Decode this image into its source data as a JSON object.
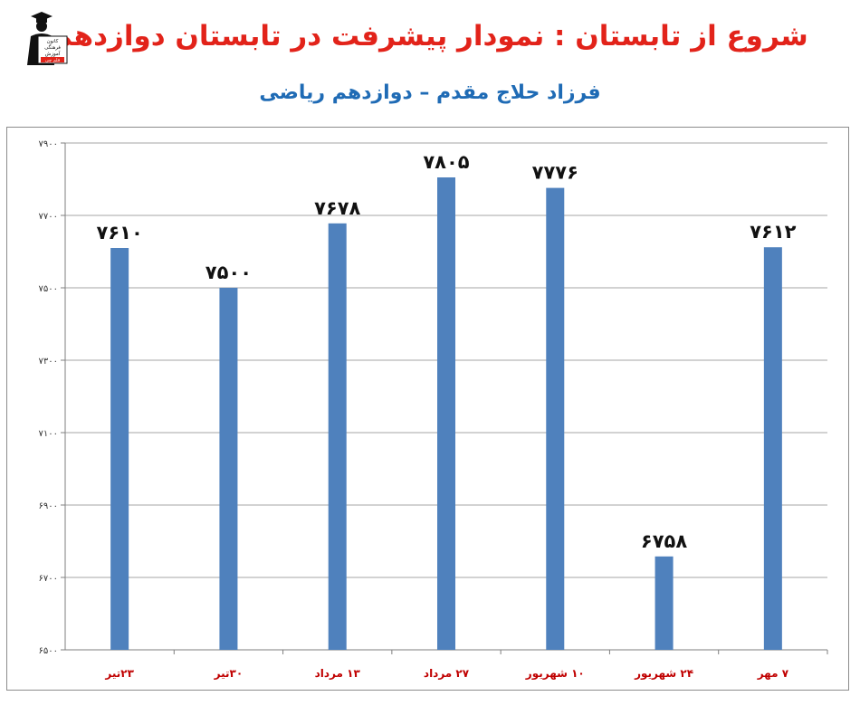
{
  "header": {
    "title": "شروع از تابستان : نمودار پیشرفت در تابستان دوازدهم",
    "subtitle": "فرزاد حلاج مقدم – دوازدهم ریاضی"
  },
  "logo": {
    "icon": "graduate-logo-icon",
    "text_lines": [
      "کانون",
      "فرهنگی",
      "آموزش",
      "قلم چی"
    ]
  },
  "colors": {
    "title": "#e2231a",
    "subtitle": "#1f6bb5",
    "bar": "#4f81bd",
    "category_label": "#c00000",
    "grid": "#a6a6a6"
  },
  "chart_data": {
    "type": "bar",
    "title": "",
    "xlabel": "",
    "ylabel": "",
    "ylim": [
      6500,
      7900
    ],
    "yticks": [
      6500,
      6700,
      6900,
      7100,
      7300,
      7500,
      7700,
      7900
    ],
    "ytick_labels": [
      "۶۵۰۰",
      "۶۷۰۰",
      "۶۹۰۰",
      "۷۱۰۰",
      "۷۳۰۰",
      "۷۵۰۰",
      "۷۷۰۰",
      "۷۹۰۰"
    ],
    "grid": true,
    "legend": "none",
    "categories": [
      "۲۳تیر",
      "۳۰تیر",
      "۱۳ مرداد",
      "۲۷ مرداد",
      "۱۰ شهریور",
      "۲۴ شهریور",
      "۷ مهر"
    ],
    "values": [
      7610,
      7500,
      7678,
      7805,
      7776,
      6758,
      7612
    ],
    "data_labels": [
      "۷۶۱۰",
      "۷۵۰۰",
      "۷۶۷۸",
      "۷۸۰۵",
      "۷۷۷۶",
      "۶۷۵۸",
      "۷۶۱۲"
    ]
  }
}
